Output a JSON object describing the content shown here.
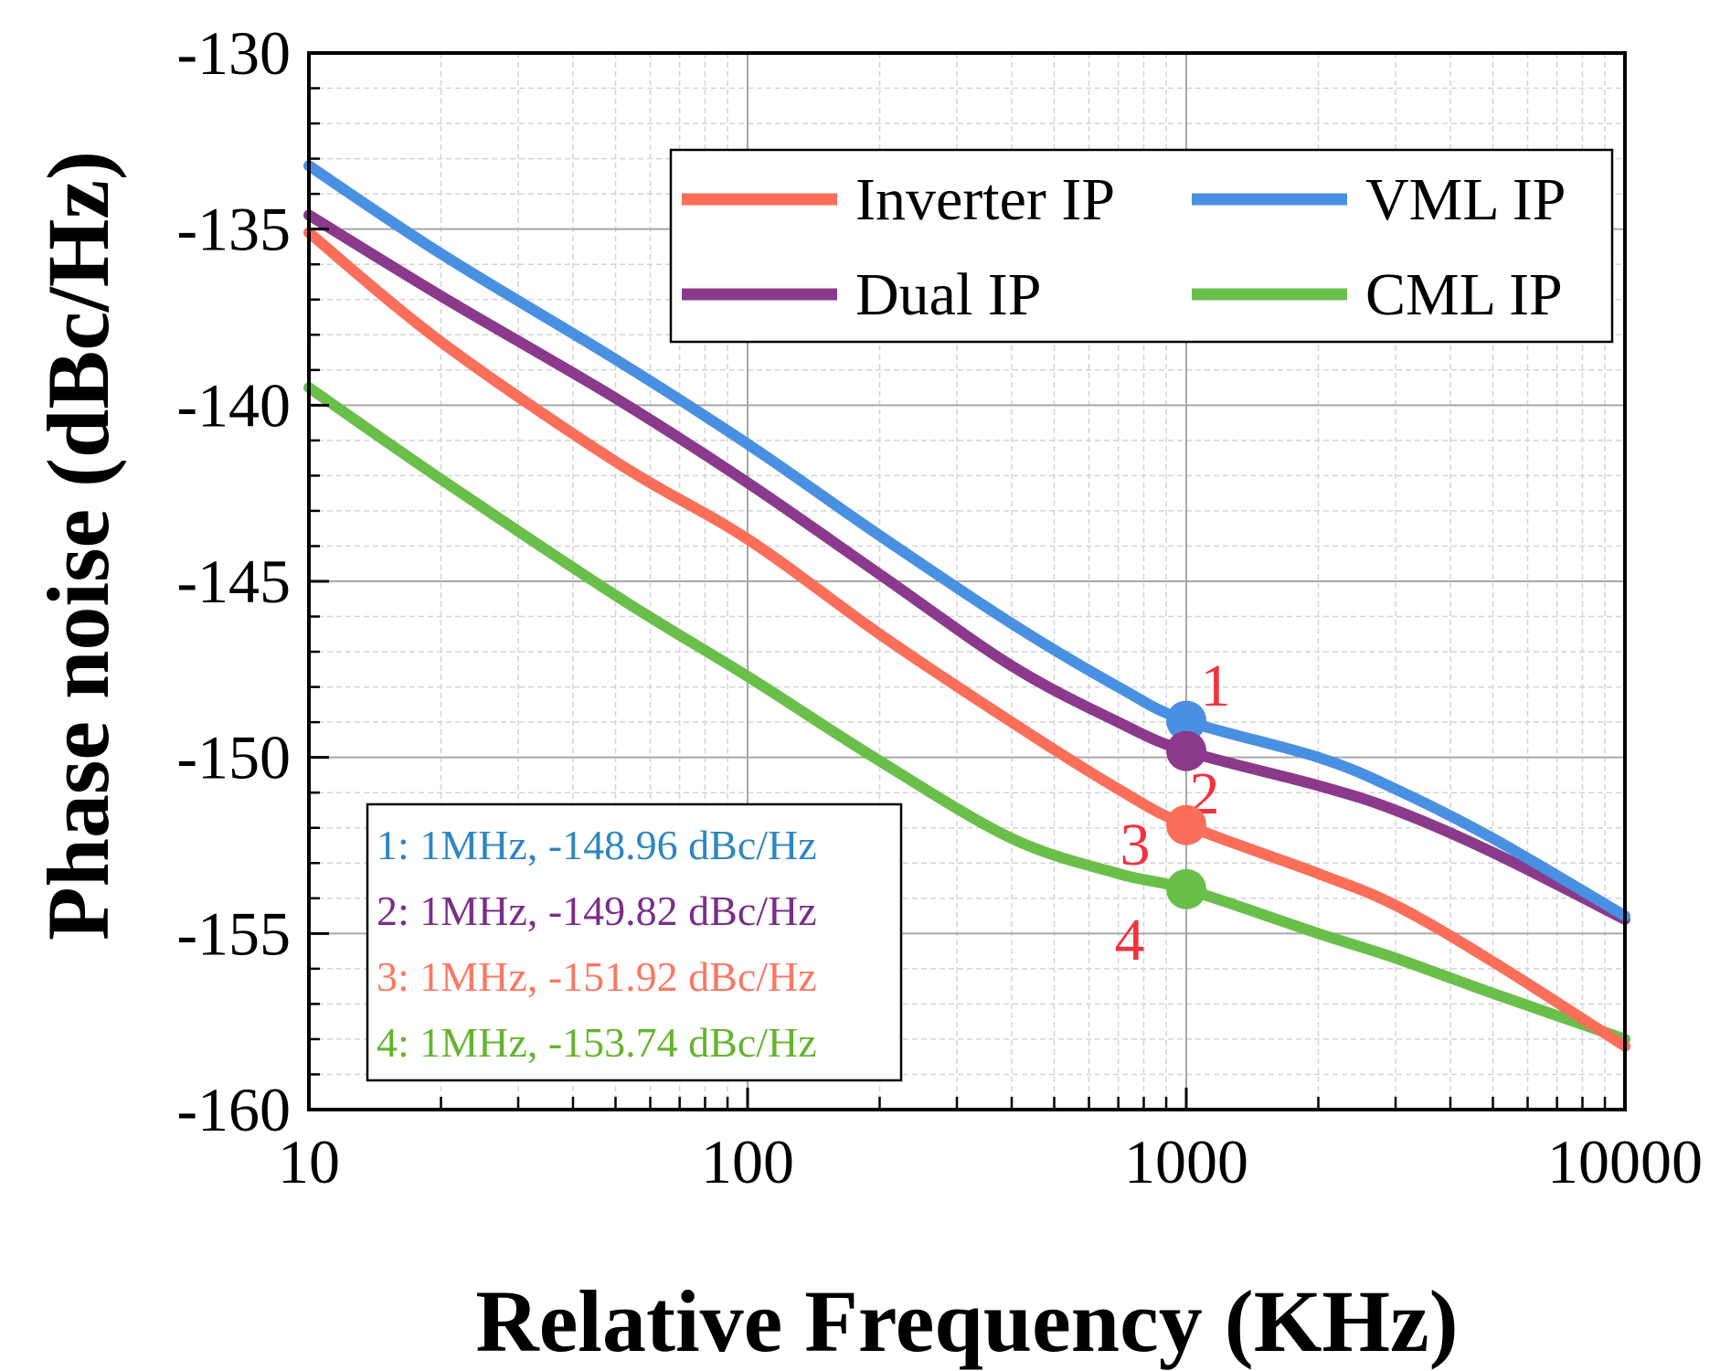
{
  "chart_data": {
    "type": "line",
    "xlabel": "Relative Frequency (KHz)",
    "ylabel": "Phase noise (dBc/Hz)",
    "xscale": "log",
    "xlim": [
      10,
      10000
    ],
    "ylim": [
      -160,
      -130
    ],
    "grid": true,
    "legend_position": "top-right",
    "x_ticks": [
      {
        "value": 10,
        "label": "10"
      },
      {
        "value": 100,
        "label": "100"
      },
      {
        "value": 1000,
        "label": "1000"
      },
      {
        "value": 10000,
        "label": "10000"
      }
    ],
    "y_ticks": [
      {
        "value": -130,
        "label": "-130"
      },
      {
        "value": -135,
        "label": "-135"
      },
      {
        "value": -140,
        "label": "-140"
      },
      {
        "value": -145,
        "label": "-145"
      },
      {
        "value": -150,
        "label": "-150"
      },
      {
        "value": -155,
        "label": "-155"
      },
      {
        "value": -160,
        "label": "-160"
      }
    ],
    "series": [
      {
        "name": "Inverter IP",
        "color": "#FA6E5A",
        "points": [
          [
            10,
            -135.1
          ],
          [
            20,
            -138.2
          ],
          [
            50,
            -141.6
          ],
          [
            100,
            -143.8
          ],
          [
            200,
            -146.5
          ],
          [
            400,
            -149.0
          ],
          [
            700,
            -150.9
          ],
          [
            1000,
            -151.92
          ],
          [
            2000,
            -153.3
          ],
          [
            3000,
            -154.2
          ],
          [
            5000,
            -155.8
          ],
          [
            10000,
            -158.2
          ]
        ]
      },
      {
        "name": "VML IP",
        "color": "#4A90E2",
        "points": [
          [
            10,
            -133.2
          ],
          [
            20,
            -135.7
          ],
          [
            50,
            -138.7
          ],
          [
            100,
            -141.1
          ],
          [
            200,
            -143.7
          ],
          [
            400,
            -146.2
          ],
          [
            700,
            -148.0
          ],
          [
            1000,
            -148.96
          ],
          [
            2000,
            -150.0
          ],
          [
            3000,
            -150.9
          ],
          [
            5000,
            -152.3
          ],
          [
            10000,
            -154.5
          ]
        ]
      },
      {
        "name": "Dual IP",
        "color": "#8B3A8B",
        "points": [
          [
            10,
            -134.6
          ],
          [
            20,
            -136.9
          ],
          [
            50,
            -139.8
          ],
          [
            100,
            -142.2
          ],
          [
            200,
            -144.8
          ],
          [
            400,
            -147.4
          ],
          [
            700,
            -149.0
          ],
          [
            1000,
            -149.82
          ],
          [
            2000,
            -150.8
          ],
          [
            3000,
            -151.5
          ],
          [
            5000,
            -152.7
          ],
          [
            10000,
            -154.6
          ]
        ]
      },
      {
        "name": "CML IP",
        "color": "#6ABF4B",
        "points": [
          [
            10,
            -139.5
          ],
          [
            20,
            -142.1
          ],
          [
            50,
            -145.4
          ],
          [
            100,
            -147.7
          ],
          [
            200,
            -150.1
          ],
          [
            400,
            -152.3
          ],
          [
            700,
            -153.3
          ],
          [
            1000,
            -153.74
          ],
          [
            2000,
            -155.0
          ],
          [
            3000,
            -155.7
          ],
          [
            5000,
            -156.7
          ],
          [
            10000,
            -158.0
          ]
        ]
      }
    ],
    "markers": [
      {
        "label": "1",
        "x": 1000,
        "y": -148.96,
        "color": "#4A90E2"
      },
      {
        "label": "2",
        "x": 1000,
        "y": -149.82,
        "color": "#8B3A8B"
      },
      {
        "label": "3",
        "x": 1000,
        "y": -151.92,
        "color": "#FA6E5A"
      },
      {
        "label": "4",
        "x": 1000,
        "y": -153.74,
        "color": "#6ABF4B"
      }
    ],
    "marker_label_color": "#F0323C",
    "annotations": [
      {
        "text": "1: 1MHz, -148.96 dBc/Hz",
        "color": "#2E86C1"
      },
      {
        "text": "2: 1MHz, -149.82 dBc/Hz",
        "color": "#7B2D8B"
      },
      {
        "text": "3: 1MHz, -151.92 dBc/Hz",
        "color": "#FA7864"
      },
      {
        "text": "4: 1MHz, -153.74 dBc/Hz",
        "color": "#64B42D"
      }
    ]
  }
}
